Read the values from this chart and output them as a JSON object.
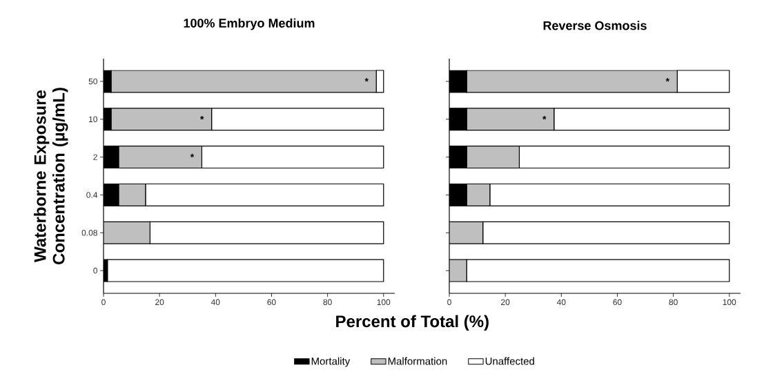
{
  "chart_data": [
    {
      "type": "bar",
      "orientation": "horizontal",
      "stacked": true,
      "title": "100% Embryo Medium",
      "xlabel": "Percent of Total (%)",
      "ylabel": "Waterborne Exposure Concentration (µg/mL)",
      "legend": "bottom",
      "categories": [
        "50",
        "10",
        "2",
        "0.4",
        "0.08",
        "0"
      ],
      "series": [
        {
          "name": "Mortality",
          "color": "#000000",
          "values": [
            2.7,
            2.7,
            5.4,
            5.4,
            0,
            1.4
          ]
        },
        {
          "name": "Malformation",
          "color": "#bfbfbf",
          "values": [
            94.7,
            35.9,
            29.7,
            9.6,
            16.6,
            0
          ]
        },
        {
          "name": "Unaffected",
          "color": "#ffffff",
          "values": [
            2.6,
            61.4,
            64.9,
            85.0,
            83.4,
            98.6
          ]
        }
      ],
      "xlim": [
        0,
        104
      ],
      "xticks": [
        0,
        20,
        40,
        60,
        80,
        100
      ],
      "annotations": [
        {
          "text": "*",
          "x": 97.4,
          "y": "50"
        },
        {
          "text": "*",
          "x": 38.6,
          "y": "10"
        },
        {
          "text": "*",
          "x": 35.1,
          "y": "2"
        }
      ]
    },
    {
      "type": "bar",
      "orientation": "horizontal",
      "stacked": true,
      "title": "Reverse Osmosis",
      "tick_labels": "x",
      "categories": [
        "50",
        "10",
        "2",
        "0.4",
        "0.08",
        "0"
      ],
      "series": [
        {
          "color": "#000000",
          "values": [
            6.2,
            6.2,
            6.2,
            6.2,
            0,
            0
          ]
        },
        {
          "color": "#bfbfbf",
          "values": [
            75.2,
            31.2,
            18.8,
            8.3,
            12.0,
            6.2
          ]
        },
        {
          "color": "#ffffff",
          "values": [
            18.6,
            62.6,
            75.0,
            85.5,
            88.0,
            93.8
          ]
        }
      ],
      "xlim": [
        0,
        104
      ],
      "xticks": [
        0,
        20,
        40,
        60,
        80,
        100
      ],
      "annotations": [
        {
          "text": "*",
          "x": 81.4,
          "y": "50"
        },
        {
          "text": "*",
          "x": 37.4,
          "y": "10"
        }
      ]
    }
  ]
}
